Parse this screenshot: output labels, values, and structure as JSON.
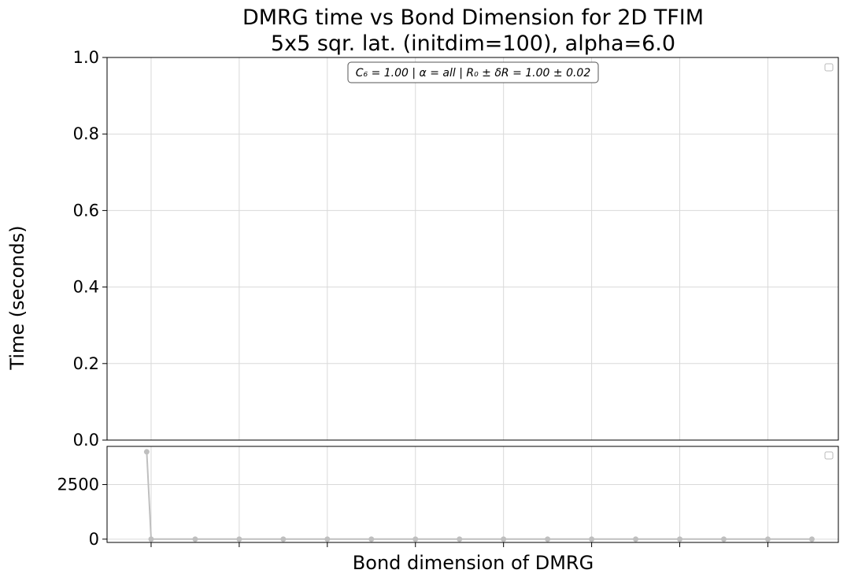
{
  "chart_data": [
    {
      "type": "line",
      "title_lines": [
        "DMRG time vs Bond Dimension for 2D TFIM",
        "5x5 sqr. lat. (initdim=100), alpha=6.0"
      ],
      "ylabel": "Time (seconds)",
      "xlabel": "",
      "ylim": [
        0.0,
        1.0
      ],
      "yticks": [
        "0.0",
        "0.2",
        "0.4",
        "0.6",
        "0.8",
        "1.0"
      ],
      "grid": true,
      "legend": "top-right (empty)",
      "annotation": "C₆ = 1.00 | α = all | R₀ ± δR = 1.00 ± 0.02",
      "series": []
    },
    {
      "type": "line",
      "xlabel": "Bond dimension of DMRG",
      "ylabel": "",
      "ylim": [
        -150,
        4250
      ],
      "yticks": [
        "0",
        "2500"
      ],
      "grid": true,
      "legend": "top-right (empty)",
      "x": [
        0.9,
        1,
        2,
        3,
        4,
        5,
        6,
        7,
        8,
        9,
        10,
        11,
        12,
        13,
        14,
        15,
        16
      ],
      "xlim": [
        0.0,
        16.6
      ],
      "series": [
        {
          "color": "#bfbfbf",
          "values": [
            4000,
            0,
            0,
            0,
            0,
            0,
            0,
            0,
            0,
            0,
            0,
            0,
            0,
            0,
            0,
            0,
            0
          ]
        }
      ]
    }
  ]
}
